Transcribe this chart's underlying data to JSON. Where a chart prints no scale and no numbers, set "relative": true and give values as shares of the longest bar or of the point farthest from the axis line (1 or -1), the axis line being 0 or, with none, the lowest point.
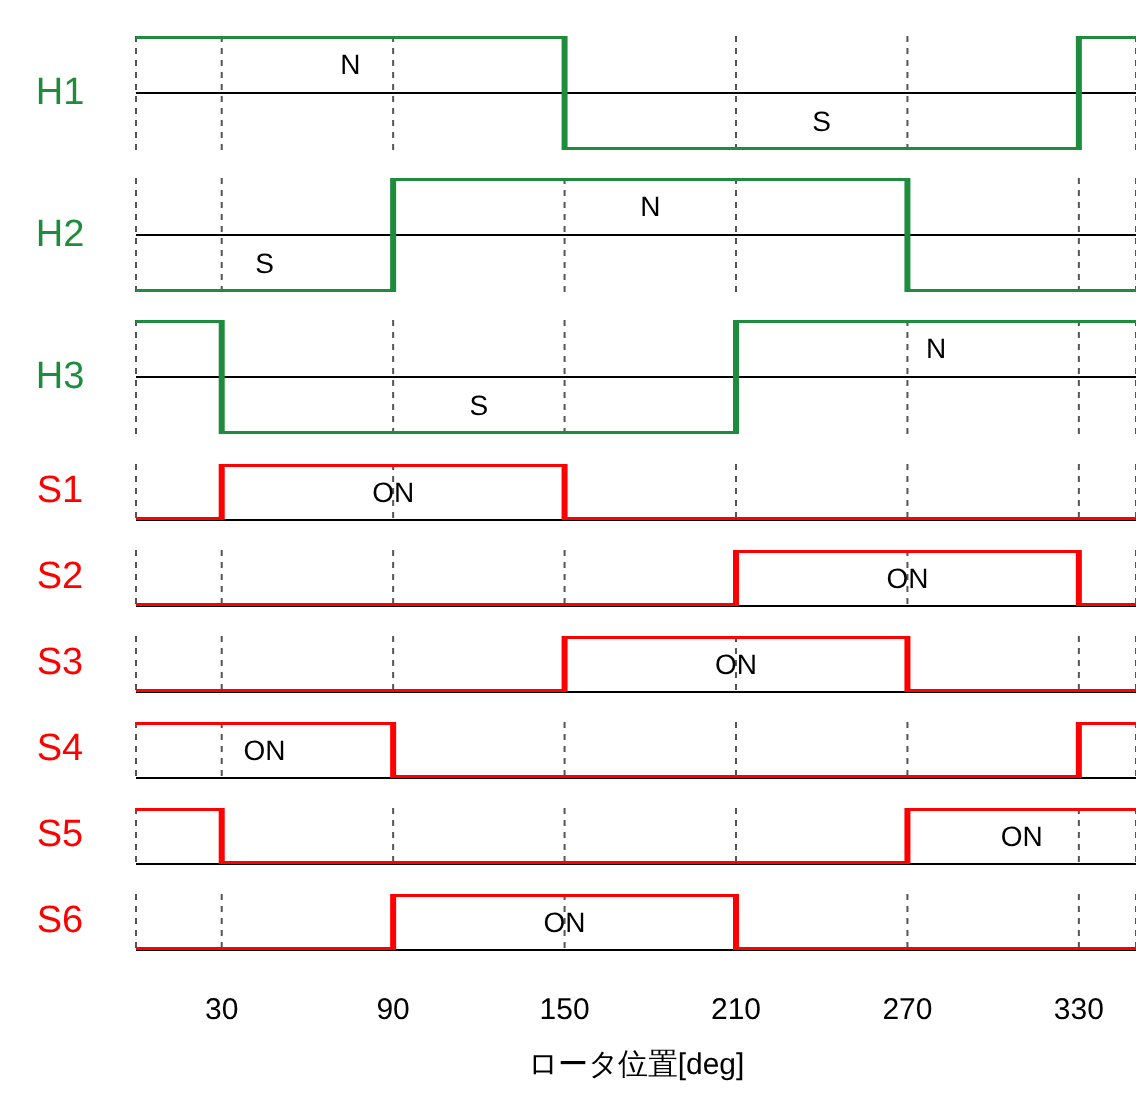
{
  "chart_data": [
    {
      "type": "step",
      "relative": true,
      "xlim": [
        0,
        350
      ],
      "xticks": [
        30,
        90,
        150,
        210,
        270,
        330
      ],
      "grid": "x",
      "tick_labels": false,
      "series": [
        {
          "name": "H1",
          "color": "#1e8c3c",
          "x": [
            0,
            150,
            330,
            350
          ],
          "values": [
            1,
            -1,
            1,
            1
          ]
        }
      ],
      "annotations": [
        "N",
        "S"
      ]
    },
    {
      "type": "step",
      "relative": true,
      "xlim": [
        0,
        350
      ],
      "xticks": [
        30,
        90,
        150,
        210,
        270,
        330
      ],
      "grid": "x",
      "tick_labels": false,
      "series": [
        {
          "name": "H2",
          "color": "#1e8c3c",
          "x": [
            0,
            90,
            270,
            350
          ],
          "values": [
            -1,
            1,
            -1,
            -1
          ]
        }
      ],
      "annotations": [
        "N",
        "S"
      ]
    },
    {
      "type": "step",
      "relative": true,
      "xlim": [
        0,
        350
      ],
      "xticks": [
        30,
        90,
        150,
        210,
        270,
        330
      ],
      "grid": "x",
      "tick_labels": false,
      "series": [
        {
          "name": "H3",
          "color": "#1e8c3c",
          "x": [
            0,
            30,
            210,
            350
          ],
          "values": [
            1,
            -1,
            1,
            1
          ]
        }
      ],
      "annotations": [
        "N",
        "S"
      ]
    },
    {
      "type": "step",
      "relative": true,
      "xlim": [
        0,
        350
      ],
      "xticks": [
        30,
        90,
        150,
        210,
        270,
        330
      ],
      "grid": "x",
      "tick_labels": false,
      "series": [
        {
          "name": "S1",
          "color": "#ff0000",
          "x": [
            0,
            30,
            150,
            350
          ],
          "values": [
            0,
            1,
            0,
            0
          ]
        }
      ],
      "annotations": [
        "ON"
      ]
    },
    {
      "type": "step",
      "relative": true,
      "xlim": [
        0,
        350
      ],
      "xticks": [
        30,
        90,
        150,
        210,
        270,
        330
      ],
      "grid": "x",
      "tick_labels": false,
      "series": [
        {
          "name": "S2",
          "color": "#ff0000",
          "x": [
            0,
            210,
            330,
            350
          ],
          "values": [
            0,
            1,
            0,
            0
          ]
        }
      ],
      "annotations": [
        "ON"
      ]
    },
    {
      "type": "step",
      "relative": true,
      "xlim": [
        0,
        350
      ],
      "xticks": [
        30,
        90,
        150,
        210,
        270,
        330
      ],
      "grid": "x",
      "tick_labels": false,
      "series": [
        {
          "name": "S3",
          "color": "#ff0000",
          "x": [
            0,
            150,
            270,
            350
          ],
          "values": [
            0,
            1,
            0,
            0
          ]
        }
      ],
      "annotations": [
        "ON"
      ]
    },
    {
      "type": "step",
      "relative": true,
      "xlim": [
        0,
        350
      ],
      "xticks": [
        30,
        90,
        150,
        210,
        270,
        330
      ],
      "grid": "x",
      "tick_labels": false,
      "series": [
        {
          "name": "S4",
          "color": "#ff0000",
          "x": [
            0,
            90,
            330,
            350
          ],
          "values": [
            1,
            0,
            1,
            1
          ]
        }
      ],
      "annotations": [
        "ON"
      ]
    },
    {
      "type": "step",
      "relative": true,
      "xlim": [
        0,
        350
      ],
      "xticks": [
        30,
        90,
        150,
        210,
        270,
        330
      ],
      "grid": "x",
      "tick_labels": false,
      "series": [
        {
          "name": "S5",
          "color": "#ff0000",
          "x": [
            0,
            30,
            270,
            350
          ],
          "values": [
            1,
            0,
            1,
            1
          ]
        }
      ],
      "annotations": [
        "ON"
      ]
    },
    {
      "type": "step",
      "relative": true,
      "xlim": [
        0,
        350
      ],
      "xticks": [
        30,
        90,
        150,
        210,
        270,
        330
      ],
      "grid": "x",
      "tick_labels": "x",
      "xlabel": "ロータ位置[deg]",
      "series": [
        {
          "name": "S6",
          "color": "#ff0000",
          "x": [
            0,
            90,
            210,
            350
          ],
          "values": [
            0,
            1,
            0,
            0
          ]
        }
      ],
      "annotations": [
        "ON"
      ]
    }
  ]
}
